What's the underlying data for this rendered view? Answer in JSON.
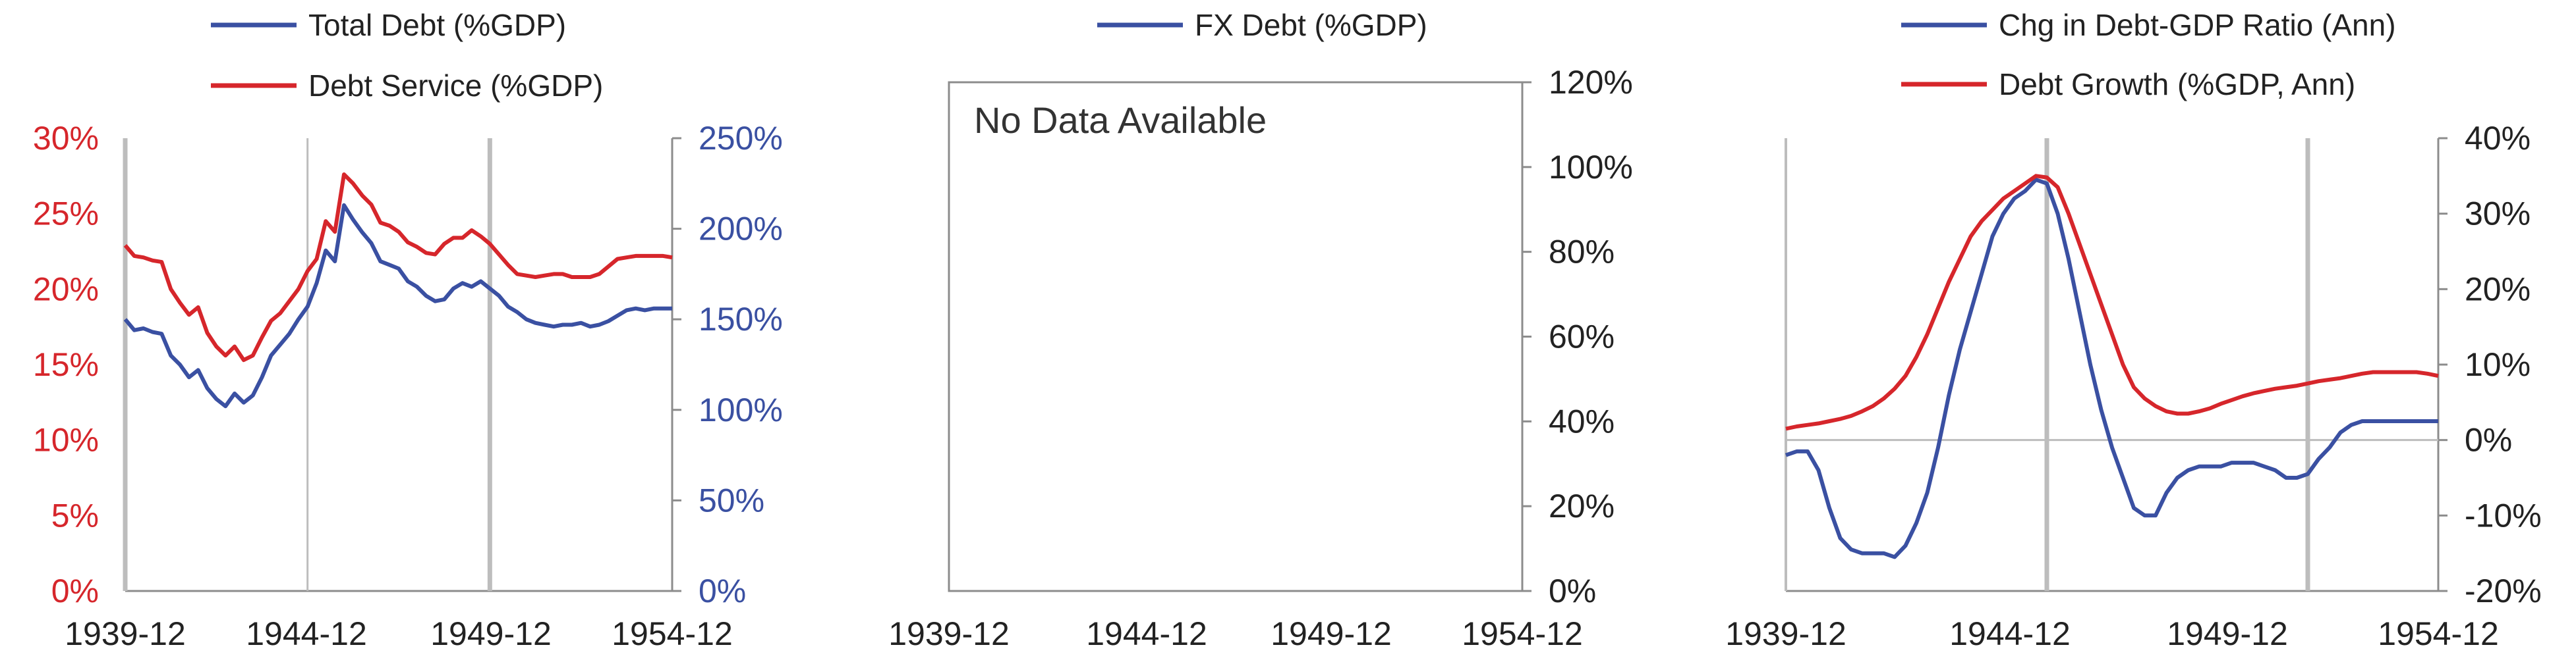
{
  "colors": {
    "blue": "#3a50a2",
    "red": "#d6262b",
    "axis": "#8c8c8c",
    "grid": "#bdbdbd",
    "text": "#222222"
  },
  "chart_data": [
    {
      "type": "line",
      "x_ticks": [
        "1939-12",
        "1944-12",
        "1949-12",
        "1954-12"
      ],
      "xlim": [
        "1939-12",
        "1954-12"
      ],
      "left_axis": {
        "ticks": [
          "0%",
          "5%",
          "10%",
          "15%",
          "20%",
          "25%",
          "30%"
        ],
        "ylim": [
          0,
          30
        ],
        "color": "#d6262b"
      },
      "right_axis": {
        "ticks": [
          "0%",
          "50%",
          "100%",
          "150%",
          "200%",
          "250%"
        ],
        "ylim": [
          0,
          250
        ],
        "color": "#3a50a2"
      },
      "vlines": [
        "1939-12",
        "1944-12",
        "1949-12"
      ],
      "series": [
        {
          "name": "Total Debt (%GDP)",
          "axis": "right",
          "color": "#3a50a2",
          "x": [
            "1939-12",
            "1940-03",
            "1940-06",
            "1940-09",
            "1940-12",
            "1941-03",
            "1941-06",
            "1941-09",
            "1941-12",
            "1942-03",
            "1942-06",
            "1942-09",
            "1942-12",
            "1943-03",
            "1943-06",
            "1943-09",
            "1943-12",
            "1944-03",
            "1944-06",
            "1944-09",
            "1944-12",
            "1945-03",
            "1945-06",
            "1945-09",
            "1945-12",
            "1946-03",
            "1946-06",
            "1946-09",
            "1946-12",
            "1947-03",
            "1947-06",
            "1947-09",
            "1947-12",
            "1948-03",
            "1948-06",
            "1948-09",
            "1948-12",
            "1949-03",
            "1949-06",
            "1949-09",
            "1949-12",
            "1950-03",
            "1950-06",
            "1950-09",
            "1950-12",
            "1951-03",
            "1951-06",
            "1951-09",
            "1951-12",
            "1952-03",
            "1952-06",
            "1952-09",
            "1952-12",
            "1953-03",
            "1953-06",
            "1953-09",
            "1953-12",
            "1954-03",
            "1954-06",
            "1954-09",
            "1954-12"
          ],
          "y": [
            150,
            144,
            145,
            143,
            142,
            130,
            125,
            118,
            122,
            112,
            106,
            102,
            109,
            104,
            108,
            118,
            130,
            136,
            142,
            150,
            157,
            170,
            188,
            182,
            213,
            205,
            198,
            192,
            182,
            180,
            178,
            171,
            168,
            163,
            160,
            161,
            167,
            170,
            168,
            171,
            167,
            163,
            157,
            154,
            150,
            148,
            147,
            146,
            147,
            147,
            148,
            146,
            147,
            149,
            152,
            155,
            156,
            155,
            156,
            156,
            156
          ]
        },
        {
          "name": "Debt Service (%GDP)",
          "axis": "left",
          "color": "#d6262b",
          "x": [
            "1939-12",
            "1940-03",
            "1940-06",
            "1940-09",
            "1940-12",
            "1941-03",
            "1941-06",
            "1941-09",
            "1941-12",
            "1942-03",
            "1942-06",
            "1942-09",
            "1942-12",
            "1943-03",
            "1943-06",
            "1943-09",
            "1943-12",
            "1944-03",
            "1944-06",
            "1944-09",
            "1944-12",
            "1945-03",
            "1945-06",
            "1945-09",
            "1945-12",
            "1946-03",
            "1946-06",
            "1946-09",
            "1946-12",
            "1947-03",
            "1947-06",
            "1947-09",
            "1947-12",
            "1948-03",
            "1948-06",
            "1948-09",
            "1948-12",
            "1949-03",
            "1949-06",
            "1949-09",
            "1949-12",
            "1950-03",
            "1950-06",
            "1950-09",
            "1950-12",
            "1951-03",
            "1951-06",
            "1951-09",
            "1951-12",
            "1952-03",
            "1952-06",
            "1952-09",
            "1952-12",
            "1953-03",
            "1953-06",
            "1953-09",
            "1953-12",
            "1954-03",
            "1954-06",
            "1954-09",
            "1954-12"
          ],
          "y": [
            22.9,
            22.2,
            22.1,
            21.9,
            21.8,
            20.0,
            19.1,
            18.3,
            18.8,
            17.1,
            16.2,
            15.6,
            16.2,
            15.3,
            15.6,
            16.8,
            17.9,
            18.4,
            19.2,
            20.0,
            21.2,
            22.0,
            24.5,
            23.8,
            27.6,
            27.0,
            26.2,
            25.6,
            24.4,
            24.2,
            23.8,
            23.1,
            22.8,
            22.4,
            22.3,
            23.0,
            23.4,
            23.4,
            23.9,
            23.5,
            23.0,
            22.3,
            21.6,
            21.0,
            20.9,
            20.8,
            20.9,
            21.0,
            21.0,
            20.8,
            20.8,
            20.8,
            21.0,
            21.5,
            22.0,
            22.1,
            22.2,
            22.2,
            22.2,
            22.2,
            22.1
          ]
        }
      ]
    },
    {
      "type": "line",
      "x_ticks": [
        "1939-12",
        "1944-12",
        "1949-12",
        "1954-12"
      ],
      "right_axis": {
        "ticks": [
          "0%",
          "20%",
          "40%",
          "60%",
          "80%",
          "100%",
          "120%"
        ],
        "ylim": [
          0,
          120
        ]
      },
      "series": [
        {
          "name": "FX Debt (%GDP)",
          "color": "#3a50a2",
          "x": [],
          "y": []
        }
      ],
      "annotation": "No Data Available"
    },
    {
      "type": "line",
      "x_ticks": [
        "1939-12",
        "1944-12",
        "1949-12",
        "1954-12"
      ],
      "xlim": [
        "1939-12",
        "1954-12"
      ],
      "right_axis": {
        "ticks": [
          "-20%",
          "-10%",
          "0%",
          "10%",
          "20%",
          "30%",
          "40%"
        ],
        "ylim": [
          -20,
          40
        ]
      },
      "vlines": [
        "1939-12",
        "1945-12",
        "1951-12"
      ],
      "series": [
        {
          "name": "Chg in Debt-GDP Ratio (Ann)",
          "color": "#3a50a2",
          "x": [
            "1939-12",
            "1940-03",
            "1940-06",
            "1940-09",
            "1940-12",
            "1941-03",
            "1941-06",
            "1941-09",
            "1941-12",
            "1942-03",
            "1942-06",
            "1942-09",
            "1942-12",
            "1943-03",
            "1943-06",
            "1943-09",
            "1943-12",
            "1944-03",
            "1944-06",
            "1944-09",
            "1944-12",
            "1945-03",
            "1945-06",
            "1945-09",
            "1945-12",
            "1946-03",
            "1946-06",
            "1946-09",
            "1946-12",
            "1947-03",
            "1947-06",
            "1947-09",
            "1947-12",
            "1948-03",
            "1948-06",
            "1948-09",
            "1948-12",
            "1949-03",
            "1949-06",
            "1949-09",
            "1949-12",
            "1950-03",
            "1950-06",
            "1950-09",
            "1950-12",
            "1951-03",
            "1951-06",
            "1951-09",
            "1951-12",
            "1952-03",
            "1952-06",
            "1952-09",
            "1952-12",
            "1953-03",
            "1953-06",
            "1953-09",
            "1953-12",
            "1954-03",
            "1954-06",
            "1954-09",
            "1954-12"
          ],
          "y": [
            -2,
            -1.5,
            -1.5,
            -4,
            -9,
            -13,
            -14.5,
            -15,
            -15,
            -15,
            -15.5,
            -14,
            -11,
            -7,
            -1,
            6,
            12,
            17,
            22,
            27,
            30,
            32,
            33,
            34.5,
            34,
            30,
            24,
            17,
            10,
            4,
            -1,
            -5,
            -9,
            -10,
            -10,
            -7,
            -5,
            -4,
            -3.5,
            -3.5,
            -3.5,
            -3,
            -3,
            -3,
            -3.5,
            -4,
            -5,
            -5,
            -4.5,
            -2.5,
            -1,
            1,
            2,
            2.5,
            2.5,
            2.5,
            2.5,
            2.5,
            2.5,
            2.5,
            2.5
          ]
        },
        {
          "name": "Debt Growth (%GDP, Ann)",
          "color": "#d6262b",
          "x": [
            "1939-12",
            "1940-03",
            "1940-06",
            "1940-09",
            "1940-12",
            "1941-03",
            "1941-06",
            "1941-09",
            "1941-12",
            "1942-03",
            "1942-06",
            "1942-09",
            "1942-12",
            "1943-03",
            "1943-06",
            "1943-09",
            "1943-12",
            "1944-03",
            "1944-06",
            "1944-09",
            "1944-12",
            "1945-03",
            "1945-06",
            "1945-09",
            "1945-12",
            "1946-03",
            "1946-06",
            "1946-09",
            "1946-12",
            "1947-03",
            "1947-06",
            "1947-09",
            "1947-12",
            "1948-03",
            "1948-06",
            "1948-09",
            "1948-12",
            "1949-03",
            "1949-06",
            "1949-09",
            "1949-12",
            "1950-03",
            "1950-06",
            "1950-09",
            "1950-12",
            "1951-03",
            "1951-06",
            "1951-09",
            "1951-12",
            "1952-03",
            "1952-06",
            "1952-09",
            "1952-12",
            "1953-03",
            "1953-06",
            "1953-09",
            "1953-12",
            "1954-03",
            "1954-06",
            "1954-09",
            "1954-12"
          ],
          "y": [
            1.5,
            1.8,
            2,
            2.2,
            2.5,
            2.8,
            3.2,
            3.8,
            4.5,
            5.5,
            6.8,
            8.5,
            11,
            14,
            17.5,
            21,
            24,
            27,
            29,
            30.5,
            32,
            33,
            34,
            35,
            34.8,
            33.5,
            30,
            26,
            22,
            18,
            14,
            10,
            7,
            5.5,
            4.5,
            3.8,
            3.5,
            3.5,
            3.8,
            4.2,
            4.8,
            5.3,
            5.8,
            6.2,
            6.5,
            6.8,
            7,
            7.2,
            7.5,
            7.8,
            8,
            8.2,
            8.5,
            8.8,
            9,
            9,
            9,
            9,
            9,
            8.8,
            8.5
          ]
        }
      ]
    }
  ]
}
